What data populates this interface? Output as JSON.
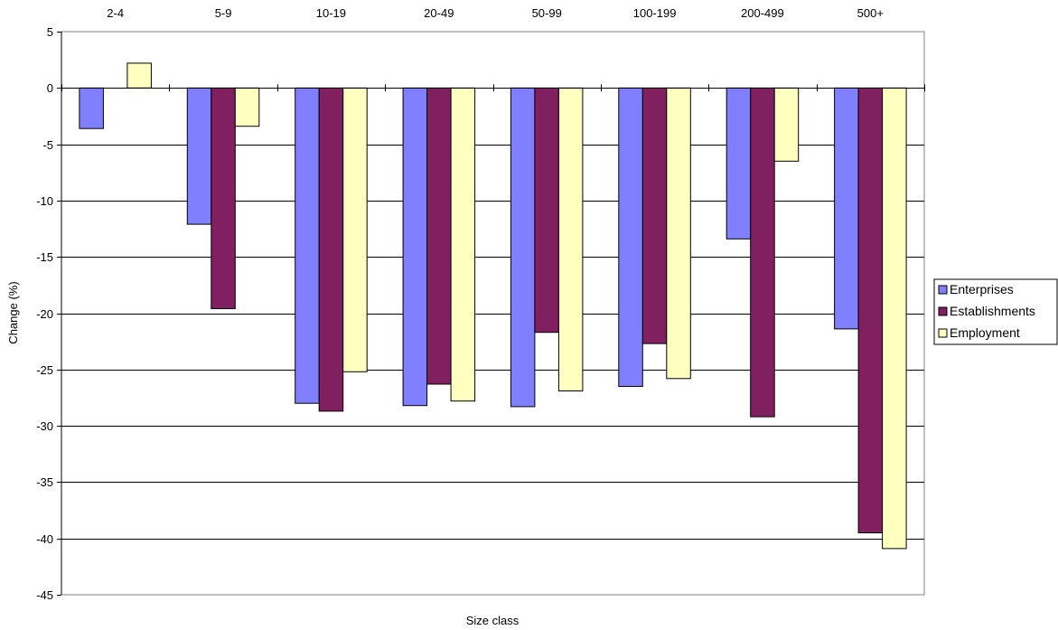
{
  "chart_data": {
    "type": "bar",
    "title": "",
    "xlabel": "Size class",
    "ylabel": "Change (%)",
    "ylim": [
      -45,
      5
    ],
    "y_ticks": [
      5,
      0,
      -5,
      -10,
      -15,
      -20,
      -25,
      -30,
      -35,
      -40,
      -45
    ],
    "x_tick_labels_position": "top",
    "grid": "horizontal",
    "legend_placement": "right",
    "categories": [
      "2-4",
      "5-9",
      "10-19",
      "20-49",
      "50-99",
      "100-199",
      "200-499",
      "500+"
    ],
    "series": [
      {
        "name": "Enterprises",
        "color": "#8080FF",
        "values": [
          -3.6,
          -12.1,
          -28.0,
          -28.2,
          -28.3,
          -26.5,
          -13.4,
          -21.4
        ]
      },
      {
        "name": "Establishments",
        "color": "#802060",
        "values": [
          0,
          -19.6,
          -28.7,
          -26.3,
          -21.7,
          -22.7,
          -29.2,
          -39.5
        ]
      },
      {
        "name": "Employment",
        "color": "#FFFFC0",
        "values": [
          2.2,
          -3.4,
          -25.2,
          -27.8,
          -26.9,
          -25.8,
          -6.5,
          -40.9
        ]
      }
    ]
  }
}
